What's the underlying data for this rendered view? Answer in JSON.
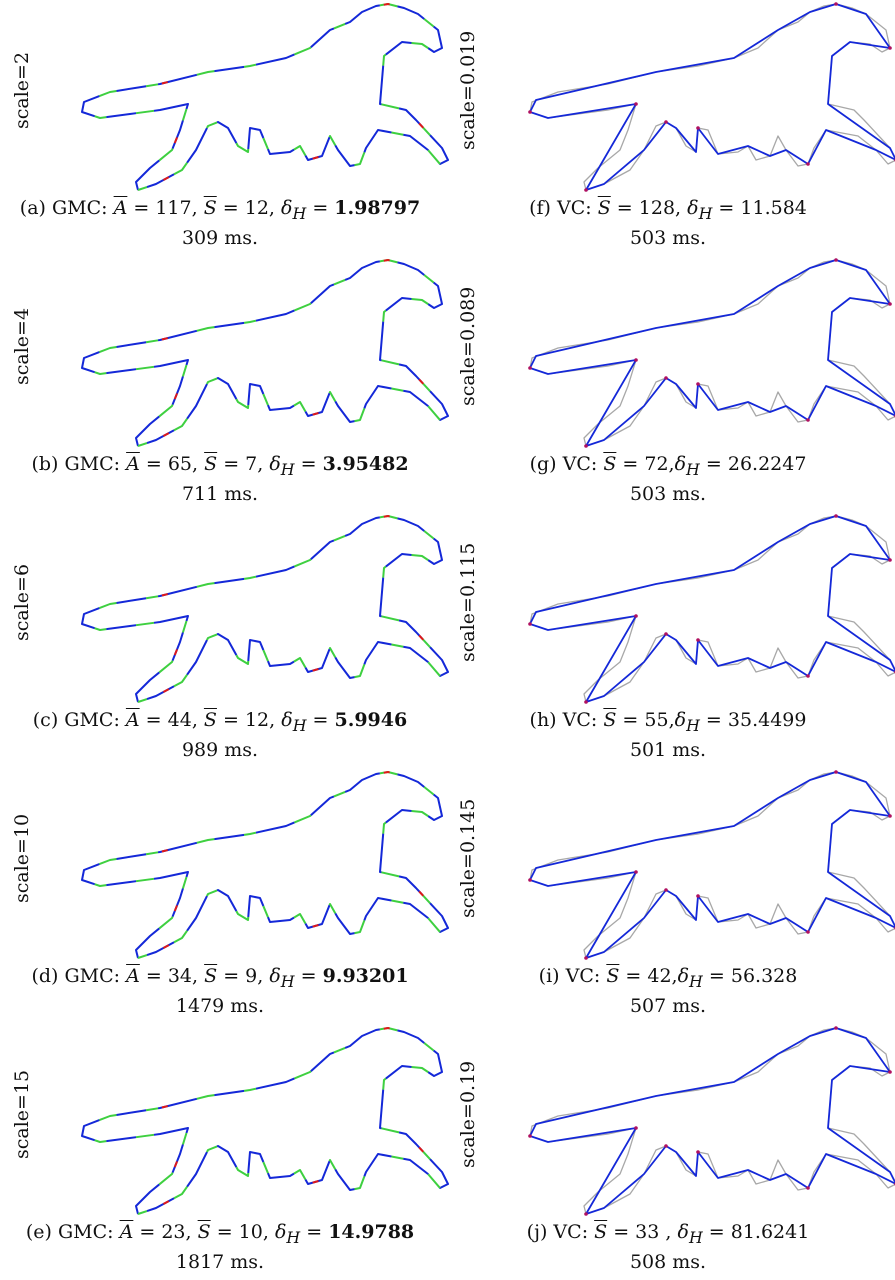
{
  "colors": {
    "original_contour": "#a8a8a8",
    "gmc_seg_1": "#1428d8",
    "gmc_seg_2": "#3ed040",
    "gmc_seg_3": "#e01818",
    "vc_segment": "#1428d8",
    "vc_vertex": "#b01060"
  },
  "left_panels": [
    {
      "scale_label": "scale=2",
      "label": "(a)",
      "method": "GMC",
      "A": "117",
      "S": "12",
      "dH": "1.98797",
      "time": "309 ms."
    },
    {
      "scale_label": "scale=4",
      "label": "(b)",
      "method": "GMC",
      "A": "65",
      "S": "7",
      "dH": "3.95482",
      "time": "711 ms."
    },
    {
      "scale_label": "scale=6",
      "label": "(c)",
      "method": "GMC",
      "A": "44",
      "S": "12",
      "dH": "5.9946",
      "time": "989 ms."
    },
    {
      "scale_label": "scale=10",
      "label": "(d)",
      "method": "GMC",
      "A": "34",
      "S": "9",
      "dH": "9.93201",
      "time": "1479 ms."
    },
    {
      "scale_label": "scale=15",
      "label": "(e)",
      "method": "GMC",
      "A": "23",
      "S": "10",
      "dH": "14.9788",
      "time": "1817 ms."
    }
  ],
  "right_panels": [
    {
      "scale_label": "scale=0.019",
      "label": "(f)",
      "method": "VC",
      "S": "128",
      "sep": ", ",
      "dH": "11.584",
      "time": "503 ms."
    },
    {
      "scale_label": "scale=0.089",
      "label": "(g)",
      "method": "VC",
      "S": "72",
      "sep": ",",
      "dH": "26.2247",
      "time": "503 ms."
    },
    {
      "scale_label": "scale=0.115",
      "label": "(h)",
      "method": "VC",
      "S": "55",
      "sep": ",",
      "dH": "35.4499",
      "time": "501 ms."
    },
    {
      "scale_label": "scale=0.145",
      "label": "(i)",
      "method": "VC",
      "S": "42",
      "sep": ",",
      "dH": "56.328",
      "time": "507 ms."
    },
    {
      "scale_label": "scale=0.19",
      "label": "(j)",
      "method": "VC",
      "S": "33",
      "sep": " , ",
      "dH": "81.6241",
      "time": "508 ms."
    }
  ]
}
